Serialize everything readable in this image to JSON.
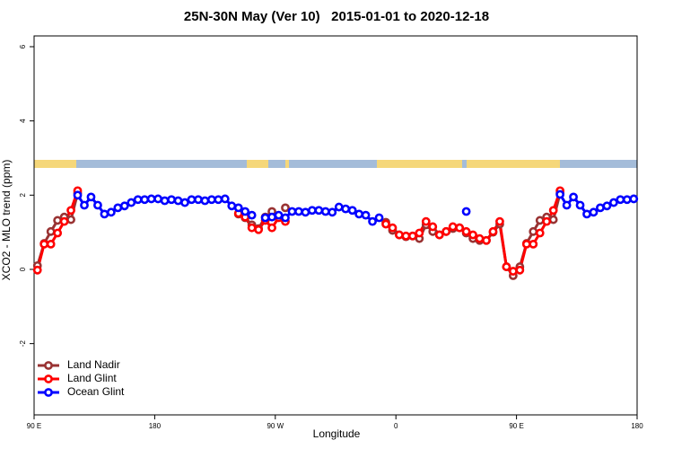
{
  "chart_data": {
    "type": "line",
    "title": "25N-30N May (Ver 10)   2015-01-01 to 2020-12-18",
    "x_label": "Longitude",
    "y_label": "XCO2 - MLO trend (ppm)",
    "xlim": [
      90,
      540
    ],
    "ylim": [
      -3.92,
      6.29
    ],
    "xticks": [
      {
        "value": 90,
        "label": "90 E"
      },
      {
        "value": 180,
        "label": "180"
      },
      {
        "value": 270,
        "label": "90 W"
      },
      {
        "value": 360,
        "label": "0"
      },
      {
        "value": 450,
        "label": "90 E"
      },
      {
        "value": 540,
        "label": "180"
      }
    ],
    "yticks": [
      -2,
      0,
      2,
      4,
      6
    ],
    "legend": "bottomleft",
    "series": [
      {
        "name": "Land Nadir",
        "color": "#993333",
        "x": [
          92.5,
          97.5,
          102.5,
          107.5,
          112.5,
          117.5,
          122.5,
          127.5,
          132.5,
          137.5,
          142.5,
          147.5,
          152.5,
          157.5,
          162.5,
          167.5,
          172.5,
          177.5,
          182.5,
          187.5,
          192.5,
          197.5,
          202.5,
          207.5,
          212.5,
          217.5,
          222.5,
          227.5,
          232.5,
          237.5,
          242.5,
          247.5,
          252.5,
          257.5,
          262.5,
          267.5,
          272.5,
          277.5,
          282.5,
          287.5,
          292.5,
          297.5,
          302.5,
          307.5,
          312.5,
          317.5,
          322.5,
          327.5,
          332.5,
          337.5,
          342.5,
          347.5,
          352.5,
          357.5,
          362.5,
          367.5,
          372.5,
          377.5,
          382.5,
          387.5,
          392.5,
          397.5,
          402.5,
          407.5,
          412.5,
          417.5,
          422.5,
          427.5,
          432.5,
          437.5,
          442.5,
          447.5,
          452.5,
          457.5,
          462.5,
          467.5,
          472.5,
          477.5,
          482.5
        ],
        "values": [
          0.1,
          0.7,
          1.02,
          1.32,
          1.41,
          1.34,
          2.05,
          null,
          null,
          null,
          null,
          null,
          null,
          null,
          null,
          null,
          null,
          null,
          null,
          null,
          null,
          null,
          null,
          null,
          null,
          null,
          null,
          null,
          null,
          null,
          1.49,
          1.39,
          1.2,
          1.1,
          1.41,
          1.56,
          null,
          1.66,
          null,
          null,
          null,
          null,
          null,
          null,
          null,
          null,
          null,
          null,
          null,
          null,
          null,
          null,
          1.27,
          1.05,
          0.93,
          0.88,
          0.9,
          0.83,
          1.2,
          1.02,
          0.93,
          1.02,
          1.1,
          1.12,
          0.98,
          0.83,
          0.78,
          0.78,
          1.0,
          1.22,
          0.07,
          -0.17,
          0.07,
          0.7,
          1.02,
          1.32,
          1.41,
          1.34,
          2.05
        ]
      },
      {
        "name": "Land Glint",
        "color": "#ff0000",
        "x": [
          92.5,
          97.5,
          102.5,
          107.5,
          112.5,
          117.5,
          122.5,
          127.5,
          132.5,
          137.5,
          142.5,
          147.5,
          152.5,
          157.5,
          162.5,
          167.5,
          172.5,
          177.5,
          182.5,
          187.5,
          192.5,
          197.5,
          202.5,
          207.5,
          212.5,
          217.5,
          222.5,
          227.5,
          232.5,
          237.5,
          242.5,
          247.5,
          252.5,
          257.5,
          262.5,
          267.5,
          272.5,
          277.5,
          282.5,
          287.5,
          292.5,
          297.5,
          302.5,
          307.5,
          312.5,
          317.5,
          322.5,
          327.5,
          332.5,
          337.5,
          342.5,
          347.5,
          352.5,
          357.5,
          362.5,
          367.5,
          372.5,
          377.5,
          382.5,
          387.5,
          392.5,
          397.5,
          402.5,
          407.5,
          412.5,
          417.5,
          422.5,
          427.5,
          432.5,
          437.5,
          442.5,
          447.5,
          452.5,
          457.5,
          462.5,
          467.5,
          472.5,
          477.5,
          482.5
        ],
        "values": [
          -0.02,
          0.68,
          0.68,
          0.98,
          1.29,
          1.59,
          2.12,
          null,
          null,
          null,
          null,
          null,
          null,
          null,
          null,
          null,
          null,
          null,
          null,
          null,
          null,
          null,
          null,
          null,
          null,
          null,
          null,
          null,
          null,
          null,
          1.51,
          1.41,
          1.12,
          1.07,
          1.32,
          1.12,
          1.39,
          1.29,
          null,
          null,
          null,
          null,
          null,
          null,
          null,
          null,
          null,
          null,
          null,
          null,
          null,
          null,
          1.22,
          1.12,
          0.93,
          0.9,
          0.9,
          0.98,
          1.29,
          1.15,
          0.93,
          1.02,
          1.15,
          1.12,
          1.02,
          0.93,
          0.83,
          0.78,
          1.02,
          1.29,
          0.07,
          -0.05,
          -0.02,
          0.68,
          0.68,
          0.98,
          1.29,
          1.59,
          2.12
        ]
      },
      {
        "name": "Ocean Glint",
        "color": "#0000ff",
        "x": [
          122.5,
          127.5,
          132.5,
          137.5,
          142.5,
          147.5,
          152.5,
          157.5,
          162.5,
          167.5,
          172.5,
          177.5,
          182.5,
          187.5,
          192.5,
          197.5,
          202.5,
          207.5,
          212.5,
          217.5,
          222.5,
          227.5,
          232.5,
          237.5,
          242.5,
          247.5,
          252.5,
          257.5,
          262.5,
          267.5,
          272.5,
          277.5,
          282.5,
          287.5,
          292.5,
          297.5,
          302.5,
          307.5,
          312.5,
          317.5,
          322.5,
          327.5,
          332.5,
          337.5,
          342.5,
          347.5,
          352.5,
          357.5,
          362.5,
          367.5,
          372.5,
          377.5,
          382.5,
          387.5,
          392.5,
          397.5,
          402.5,
          407.5,
          412.5,
          417.5,
          422.5,
          427.5,
          432.5,
          437.5,
          442.5,
          447.5,
          452.5,
          457.5,
          462.5,
          467.5,
          472.5,
          477.5,
          482.5,
          487.5,
          492.5,
          497.5,
          502.5,
          507.5,
          512.5,
          517.5,
          522.5,
          527.5,
          532.5,
          537.5
        ],
        "values": [
          2.0,
          1.73,
          1.95,
          1.73,
          1.49,
          1.54,
          1.66,
          1.71,
          1.8,
          1.88,
          1.88,
          1.9,
          1.9,
          1.85,
          1.88,
          1.85,
          1.8,
          1.88,
          1.88,
          1.85,
          1.88,
          1.88,
          1.9,
          1.71,
          1.66,
          1.56,
          1.46,
          null,
          1.39,
          1.41,
          1.46,
          1.39,
          1.56,
          1.56,
          1.54,
          1.59,
          1.59,
          1.56,
          1.54,
          1.68,
          1.63,
          1.59,
          1.49,
          1.46,
          1.29,
          1.39,
          null,
          null,
          null,
          null,
          null,
          null,
          null,
          null,
          null,
          null,
          null,
          null,
          1.56,
          null,
          null,
          null,
          null,
          null,
          null,
          null,
          null,
          null,
          null,
          null,
          null,
          null,
          2.02,
          1.73,
          1.95,
          1.73,
          1.49,
          1.54,
          1.66,
          1.71,
          1.8,
          1.88,
          1.88,
          1.9
        ]
      }
    ]
  }
}
